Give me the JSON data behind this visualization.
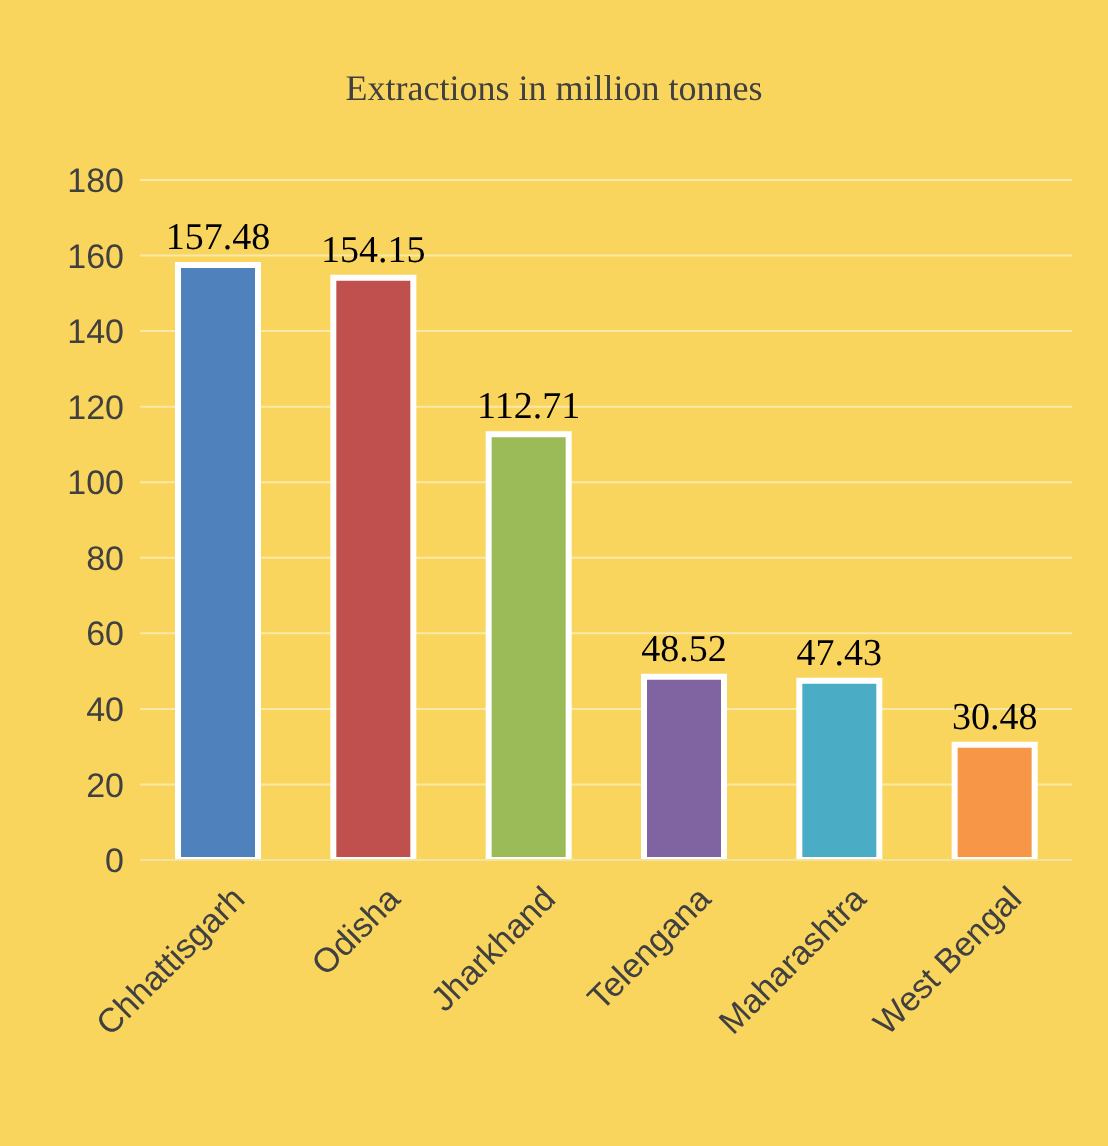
{
  "chart_data": {
    "type": "bar",
    "title": "Extractions in million tonnes",
    "categories": [
      "Chhattisgarh",
      "Odisha",
      "Jharkhand",
      "Telengana",
      "Maharashtra",
      "West Bengal"
    ],
    "values": [
      157.48,
      154.15,
      112.71,
      48.52,
      47.43,
      30.48
    ],
    "colors": [
      "#4f81bd",
      "#c0504d",
      "#9bbb59",
      "#8064a2",
      "#4bacc6",
      "#f79646"
    ],
    "ylim": [
      0,
      180
    ],
    "yticks": [
      0,
      20,
      40,
      60,
      80,
      100,
      120,
      140,
      160,
      180
    ],
    "grid": "y",
    "data_labels": true
  }
}
